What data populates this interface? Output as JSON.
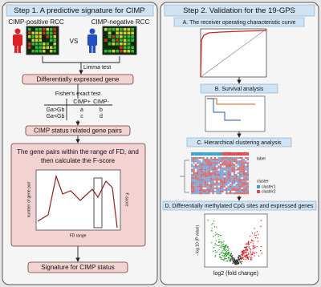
{
  "step1": {
    "title": "Step 1. A predictive signature for CIMP",
    "positive_label": "CIMP-positive RCC",
    "versus": "VS",
    "negative_label": "CIMP-negative RCC",
    "limma": "Limma test",
    "deg": "Differentially expressed gene",
    "fisher": "Fisher's exact test",
    "table": {
      "header": [
        "CIMP+",
        "CIMP-"
      ],
      "rows": [
        [
          "Ga>Gb",
          "a",
          "b"
        ],
        [
          "Ga<Gb",
          "c",
          "d"
        ]
      ]
    },
    "pairs": "CIMP status related gene pairs",
    "fscore_text": [
      "The gene pairs within the range of FD, and",
      "then calculate the F-score"
    ],
    "plot": {
      "y_label": "number of gene pair",
      "y2_label": "F-score",
      "x_label": "FD range"
    },
    "signature": "Signature for CIMP status"
  },
  "step2": {
    "title": "Step 2. Validation for the 19-GPS",
    "panels": [
      {
        "title": "A. The receiver operating characteristic curve"
      },
      {
        "title": "B. Survival analysis"
      },
      {
        "title": "C. Hierarchical clustering analysis",
        "legend": [
          "label",
          "cluster",
          "cluster1",
          "cluster2"
        ]
      },
      {
        "title": "D. Differentially methylated CpG sites and expressed genes",
        "y_label": "- log 10 (P value)",
        "x_label": "log2 (fold change)"
      }
    ]
  }
}
